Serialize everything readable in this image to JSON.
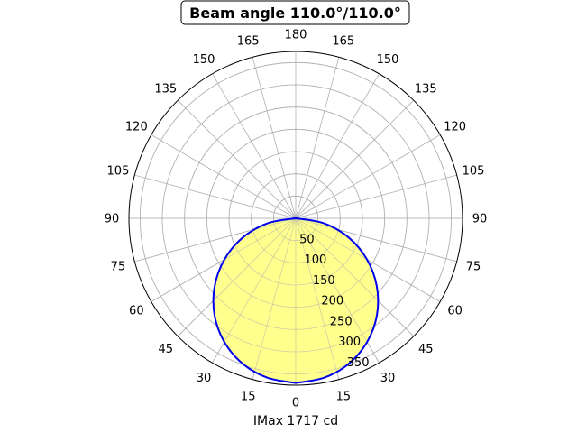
{
  "chart_data": {
    "type": "polar",
    "title": "Beam angle 110.0°/110.0°",
    "xlabel": "IMax 1717 cd",
    "angle_ticks_right": [
      0,
      15,
      30,
      45,
      60,
      75,
      90,
      105,
      120,
      135,
      150,
      165,
      180
    ],
    "angle_ticks_left": [
      15,
      30,
      45,
      60,
      75,
      90,
      105,
      120,
      135,
      150,
      165
    ],
    "radial_ticks": [
      50,
      100,
      150,
      200,
      250,
      300,
      350
    ],
    "rlim": [
      0,
      375
    ],
    "grid": true,
    "series": [
      {
        "line_color": "#0000ee",
        "fill_color": "#ffff88",
        "angle": [
          0,
          10,
          20,
          30,
          40,
          50,
          60,
          70,
          80,
          90
        ],
        "r": [
          370,
          364,
          348,
          321,
          284,
          238,
          185,
          127,
          64,
          0
        ]
      }
    ]
  }
}
